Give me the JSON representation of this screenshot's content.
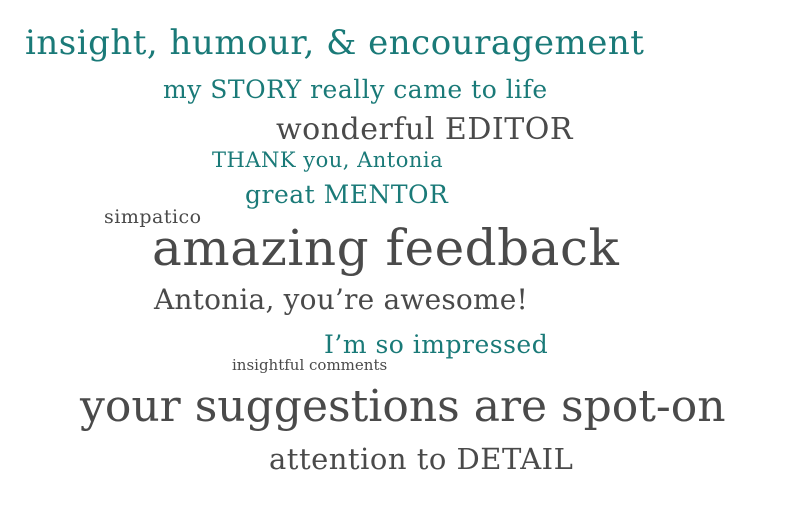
{
  "phrases": [
    "insight, humour, & encouragement",
    "my STORY really came to life",
    "wonderful EDITOR",
    "THANK you, Antonia",
    "great MENTOR",
    "simpatico",
    "amazing feedback",
    "Antonia, you’re awesome!",
    "I’m so impressed",
    "insightful comments",
    "your suggestions are spot-on",
    "attention to DETAIL"
  ],
  "colors": {
    "teal": "#1a7a78",
    "gray": "#4a4a4a",
    "background": "#ffffff"
  }
}
